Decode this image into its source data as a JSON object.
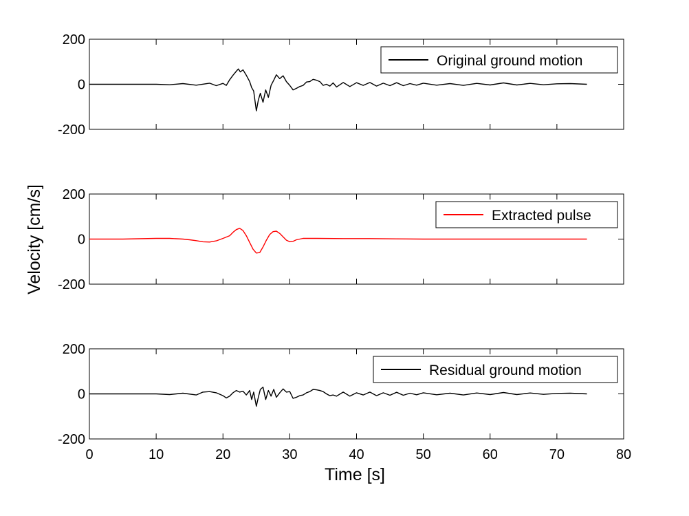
{
  "chart_data": {
    "type": "line",
    "xlabel": "Time [s]",
    "ylabel": "Velocity [cm/s]",
    "xlim": [
      0,
      80
    ],
    "xticks": [
      0,
      10,
      20,
      30,
      40,
      50,
      60,
      70,
      80
    ],
    "grid": false,
    "panels": [
      {
        "ylim": [
          -200,
          200
        ],
        "yticks": [
          -200,
          0,
          200
        ],
        "legend_position": "top-right",
        "series": [
          {
            "name": "Original ground motion",
            "color": "#000000",
            "x": [
              0,
              5,
              10,
              12,
              14,
              16,
              18,
              19,
              20,
              20.5,
              21,
              21.5,
              22,
              22.3,
              22.6,
              23,
              23.5,
              24,
              24.3,
              24.6,
              25,
              25.3,
              25.6,
              26,
              26.4,
              26.8,
              27.2,
              27.6,
              28,
              28.5,
              29,
              29.5,
              30,
              30.5,
              31,
              31.5,
              32,
              32.5,
              33,
              33.5,
              34,
              34.5,
              35,
              35.5,
              36,
              36.5,
              37,
              38,
              39,
              40,
              41,
              42,
              43,
              44,
              45,
              46,
              47,
              48,
              49,
              50,
              52,
              54,
              56,
              58,
              60,
              62,
              64,
              66,
              68,
              70,
              72,
              74.5
            ],
            "y": [
              0,
              0,
              0,
              -2,
              3,
              -4,
              5,
              -6,
              4,
              -5,
              20,
              40,
              58,
              68,
              55,
              64,
              40,
              12,
              -15,
              -30,
              -118,
              -70,
              -40,
              -80,
              -25,
              -58,
              -5,
              18,
              42,
              25,
              38,
              12,
              -5,
              -25,
              -18,
              -10,
              -5,
              10,
              12,
              22,
              18,
              12,
              -5,
              0,
              -8,
              6,
              -12,
              8,
              -10,
              7,
              -5,
              8,
              -8,
              5,
              -6,
              7,
              -6,
              3,
              -4,
              5,
              -4,
              3,
              -5,
              4,
              -3,
              6,
              -3,
              4,
              -2,
              2,
              3,
              0
            ]
          }
        ]
      },
      {
        "ylim": [
          -200,
          200
        ],
        "yticks": [
          -200,
          0,
          200
        ],
        "legend_position": "top-right",
        "series": [
          {
            "name": "Extracted pulse",
            "color": "#ff0000",
            "x": [
              0,
              5,
              10,
              12,
              14,
              15,
              16,
              17,
              18,
              19,
              20,
              21,
              21.5,
              22,
              22.5,
              23,
              23.5,
              24,
              24.5,
              25,
              25.5,
              26,
              26.5,
              27,
              27.5,
              28,
              28.5,
              29,
              29.5,
              30,
              30.5,
              31,
              32,
              34,
              38,
              42,
              46,
              50,
              60,
              74.5
            ],
            "y": [
              0,
              0,
              3,
              3,
              0,
              -3,
              -7,
              -12,
              -13,
              -8,
              3,
              15,
              30,
              42,
              48,
              38,
              15,
              -15,
              -45,
              -62,
              -60,
              -35,
              -5,
              20,
              33,
              35,
              25,
              10,
              -5,
              -12,
              -10,
              -3,
              3,
              3,
              2,
              2,
              1,
              0,
              0,
              0
            ]
          }
        ]
      },
      {
        "ylim": [
          -200,
          200
        ],
        "yticks": [
          -200,
          0,
          200
        ],
        "legend_position": "top-right",
        "series": [
          {
            "name": "Residual ground motion",
            "color": "#000000",
            "x": [
              0,
              5,
              10,
              12,
              14,
              16,
              17,
              18,
              19,
              20,
              20.5,
              21,
              21.5,
              22,
              22.5,
              23,
              23.5,
              24,
              24.3,
              24.6,
              25,
              25.3,
              25.6,
              26,
              26.4,
              26.8,
              27.2,
              27.6,
              28,
              28.5,
              29,
              29.5,
              30,
              30.5,
              31,
              31.5,
              32,
              32.5,
              33,
              33.5,
              34,
              34.5,
              35,
              35.5,
              36,
              36.5,
              37,
              38,
              39,
              40,
              41,
              42,
              43,
              44,
              45,
              46,
              47,
              48,
              49,
              50,
              52,
              54,
              56,
              58,
              60,
              62,
              64,
              66,
              68,
              70,
              72,
              74.5
            ],
            "y": [
              0,
              0,
              0,
              -3,
              3,
              -5,
              8,
              10,
              5,
              -8,
              -18,
              -10,
              5,
              15,
              8,
              12,
              -5,
              15,
              -25,
              8,
              -55,
              -15,
              20,
              30,
              -25,
              15,
              -10,
              20,
              -15,
              5,
              22,
              8,
              10,
              -20,
              -15,
              -8,
              -5,
              5,
              10,
              20,
              18,
              15,
              10,
              0,
              -8,
              -5,
              -10,
              8,
              -10,
              5,
              -5,
              8,
              -8,
              5,
              -6,
              7,
              -6,
              3,
              -4,
              5,
              -4,
              3,
              -5,
              4,
              -3,
              6,
              -3,
              4,
              -2,
              2,
              3,
              0
            ]
          }
        ]
      }
    ]
  }
}
